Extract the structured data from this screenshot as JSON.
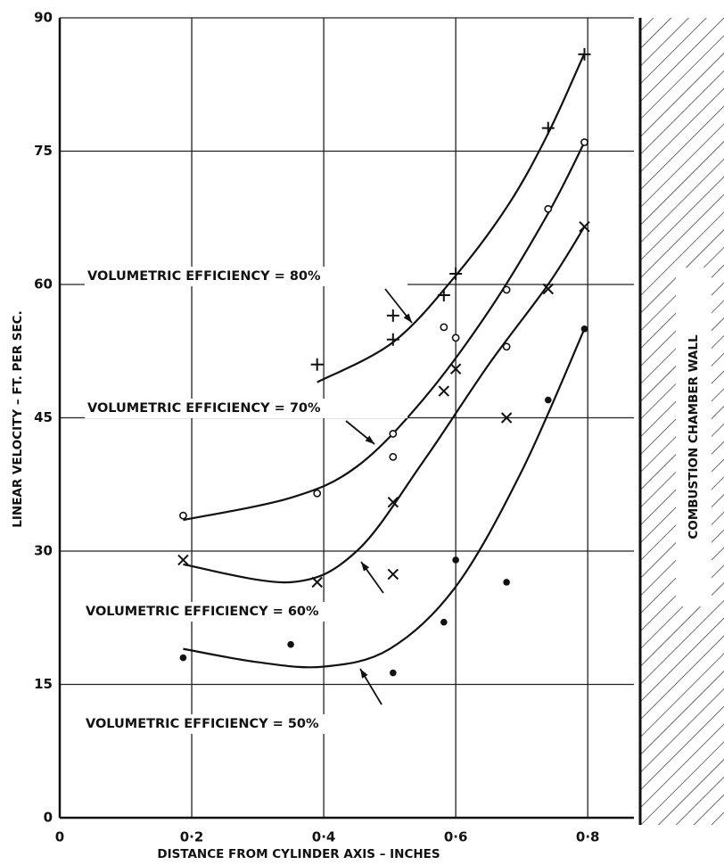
{
  "chart_data": {
    "type": "scatter",
    "xlabel": "DISTANCE FROM CYLINDER AXIS – INCHES",
    "ylabel": "LINEAR VELOCITY – FT. PER SEC.",
    "xlim": [
      0,
      0.87
    ],
    "ylim": [
      0,
      90
    ],
    "xticks": [
      0,
      {
        "value": 0.2,
        "label": "0·2"
      },
      {
        "value": 0.4,
        "label": "0·4"
      },
      {
        "value": 0.6,
        "label": "0·6"
      },
      {
        "value": 0.8,
        "label": "0·8"
      }
    ],
    "yticks": [
      0,
      15,
      30,
      45,
      60,
      75,
      90
    ],
    "grid": true,
    "wall_label": "COMBUSTION CHAMBER WALL",
    "series": [
      {
        "name": "VOLUMETRIC EFFICIENCY = 80%",
        "marker": "plus",
        "color": "#111111",
        "x": [
          0.39,
          0.505,
          0.505,
          0.582,
          0.6,
          0.74,
          0.795
        ],
        "values": [
          51,
          53.8,
          56.5,
          58.8,
          61.2,
          77.6,
          85.9
        ],
        "curve": {
          "x": [
            0.39,
            0.505,
            0.6,
            0.68,
            0.74,
            0.795
          ],
          "y": [
            49,
            53.5,
            61,
            69,
            77,
            86
          ]
        }
      },
      {
        "name": "VOLUMETRIC EFFICIENCY = 70%",
        "marker": "circle",
        "color": "#111111",
        "x": [
          0.187,
          0.39,
          0.505,
          0.505,
          0.582,
          0.6,
          0.677,
          0.677,
          0.74,
          0.795
        ],
        "values": [
          34,
          36.5,
          43.2,
          40.6,
          55.2,
          54,
          59.4,
          53,
          68.5,
          76
        ],
        "curve": {
          "x": [
            0.187,
            0.35,
            0.45,
            0.55,
            0.65,
            0.74,
            0.795
          ],
          "y": [
            33.5,
            36,
            39.5,
            47,
            57,
            68,
            76
          ]
        }
      },
      {
        "name": "VOLUMETRIC EFFICIENCY = 60%",
        "marker": "x",
        "color": "#111111",
        "x": [
          0.187,
          0.39,
          0.505,
          0.505,
          0.582,
          0.6,
          0.677,
          0.74,
          0.795
        ],
        "values": [
          29,
          26.5,
          35.5,
          27.4,
          48,
          50.5,
          45,
          59.5,
          66.5
        ],
        "curve": {
          "x": [
            0.187,
            0.35,
            0.45,
            0.55,
            0.65,
            0.74,
            0.795
          ],
          "y": [
            28.5,
            26.5,
            30,
            40,
            51,
            60,
            66.5
          ]
        }
      },
      {
        "name": "VOLUMETRIC EFFICIENCY = 50%",
        "marker": "dot",
        "color": "#111111",
        "x": [
          0.187,
          0.35,
          0.505,
          0.582,
          0.6,
          0.677,
          0.74,
          0.795
        ],
        "values": [
          18,
          19.5,
          16.3,
          22,
          29,
          26.5,
          47,
          55
        ],
        "curve": {
          "x": [
            0.187,
            0.3,
            0.4,
            0.5,
            0.6,
            0.7,
            0.795
          ],
          "y": [
            19,
            17.5,
            17,
            19,
            26,
            39,
            55
          ]
        }
      }
    ]
  }
}
